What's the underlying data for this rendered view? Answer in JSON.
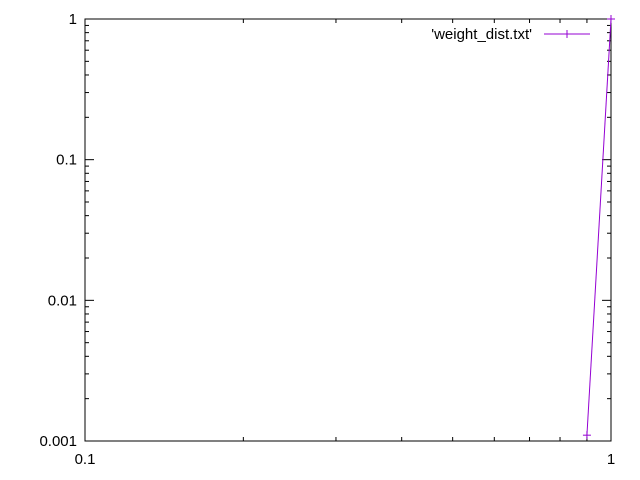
{
  "chart_data": {
    "type": "line",
    "title": "",
    "xlabel": "",
    "ylabel": "",
    "x_scale": "log",
    "y_scale": "log",
    "xlim": [
      0.1,
      1
    ],
    "ylim": [
      0.001,
      1
    ],
    "grid": false,
    "legend_position": "top-right",
    "x_tick_labels": [
      "0.1",
      "1"
    ],
    "y_tick_labels": [
      "0.001",
      "0.01",
      "0.1",
      "1"
    ],
    "series": [
      {
        "name": "'weight_dist.txt'",
        "color": "#9400d3",
        "marker": "plus",
        "points": [
          {
            "x": 0.9,
            "y": 0.0011
          },
          {
            "x": 1.0,
            "y": 1.0
          }
        ]
      }
    ]
  }
}
